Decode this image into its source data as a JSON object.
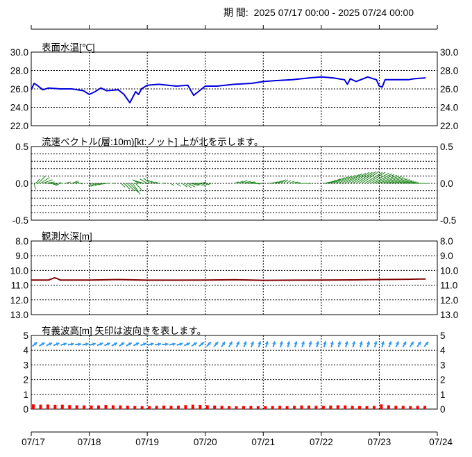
{
  "header": {
    "period_label": "期 間:",
    "period_range": "2025 07/17 00:00 - 2025 07/24 00:00"
  },
  "colors": {
    "temperature": "#0000dd",
    "current": "#108010",
    "depth": "#800000",
    "wave_height": "#ff0000",
    "wave_direction": "#3399ee",
    "grid": "#000000"
  },
  "chart_data": [
    {
      "type": "line",
      "panel": "temperature",
      "title": "表面水温[℃]",
      "ylim": [
        22.0,
        30.0
      ],
      "yticks": [
        "30.0",
        "28.0",
        "26.0",
        "24.0",
        "22.0"
      ],
      "ytick_values": [
        30,
        28,
        26,
        24,
        22
      ],
      "grid": true,
      "series": [
        {
          "x": [
            0,
            0.05,
            0.1,
            0.2,
            0.3,
            0.5,
            0.7,
            0.9,
            1.0,
            1.1,
            1.2,
            1.3,
            1.5,
            1.6,
            1.7,
            1.8,
            1.85,
            1.9,
            2.0,
            2.2,
            2.5,
            2.7,
            2.8,
            2.9,
            3.0,
            3.2,
            3.5,
            3.8,
            4.0,
            4.2,
            4.5,
            4.8,
            5.0,
            5.2,
            5.4,
            5.45,
            5.5,
            5.6,
            5.8,
            5.95,
            6.0,
            6.05,
            6.1,
            6.3,
            6.5,
            6.6,
            6.8
          ],
          "y": [
            25.9,
            26.6,
            26.4,
            25.9,
            26.1,
            26.0,
            26.0,
            25.8,
            25.4,
            25.7,
            26.1,
            25.8,
            25.9,
            25.4,
            24.5,
            25.7,
            25.4,
            26.0,
            26.4,
            26.5,
            26.3,
            26.4,
            25.3,
            25.8,
            26.3,
            26.3,
            26.5,
            26.6,
            26.8,
            26.9,
            27.0,
            27.2,
            27.3,
            27.2,
            27.0,
            26.5,
            27.1,
            26.8,
            27.3,
            27.0,
            26.3,
            26.2,
            27.0,
            27.0,
            27.0,
            27.1,
            27.2
          ]
        }
      ]
    },
    {
      "type": "line",
      "panel": "current",
      "title": "流速ベクトル(層:10m)[kt:ノット] 上が北を示します。",
      "ylim": [
        -0.5,
        0.5
      ],
      "yticks": [
        "0.5",
        "0.0",
        "-0.5"
      ],
      "ytick_values": [
        0.5,
        0.0,
        -0.5
      ],
      "grid": true,
      "vectors": {
        "t": [
          0.05,
          0.08,
          0.12,
          0.16,
          0.2,
          0.25,
          0.3,
          0.35,
          0.4,
          0.45,
          0.5,
          0.6,
          0.7,
          0.75,
          0.8,
          0.85,
          1.05,
          1.1,
          1.15,
          1.2,
          1.25,
          1.3,
          1.35,
          1.45,
          1.55,
          1.6,
          1.65,
          1.7,
          1.75,
          1.8,
          1.85,
          1.9,
          1.95,
          2.0,
          2.05,
          2.1,
          2.15,
          2.2,
          2.3,
          2.4,
          2.5,
          2.6,
          2.65,
          2.7,
          2.75,
          2.8,
          2.85,
          2.9,
          2.95,
          3.0,
          3.05,
          3.1,
          3.5,
          3.55,
          3.6,
          3.65,
          3.7,
          3.75,
          3.8,
          3.85,
          3.9,
          4.1,
          4.15,
          4.2,
          4.25,
          4.3,
          4.35,
          4.4,
          4.45,
          4.5,
          4.55,
          4.6,
          4.65,
          4.7,
          4.75,
          4.8,
          5.05,
          5.1,
          5.15,
          5.2,
          5.25,
          5.3,
          5.35,
          5.4,
          5.45,
          5.5,
          5.55,
          5.6,
          5.65,
          5.7,
          5.75,
          5.8,
          5.85,
          5.9,
          5.95,
          6.0,
          6.05,
          6.1,
          6.15,
          6.2,
          6.25,
          6.3,
          6.35,
          6.4,
          6.45,
          6.5,
          6.55,
          6.6,
          6.65,
          6.7,
          6.75,
          6.8
        ],
        "u": [
          0.02,
          0.05,
          0.1,
          0.12,
          0.13,
          0.12,
          0.1,
          0.08,
          0.06,
          0.05,
          0.04,
          0.06,
          0.08,
          0.06,
          0.05,
          0.03,
          -0.05,
          -0.07,
          -0.09,
          -0.08,
          -0.07,
          -0.06,
          -0.05,
          -0.04,
          0.05,
          0.08,
          0.1,
          0.11,
          0.1,
          0.09,
          -0.08,
          -0.1,
          -0.12,
          -0.1,
          -0.09,
          -0.08,
          -0.07,
          -0.05,
          -0.04,
          0.05,
          0.06,
          0.07,
          0.09,
          0.1,
          0.11,
          0.09,
          0.08,
          0.07,
          0.05,
          -0.05,
          -0.06,
          -0.05,
          0.06,
          0.08,
          0.1,
          0.11,
          0.12,
          0.1,
          0.09,
          0.08,
          0.06,
          0.07,
          0.08,
          0.09,
          0.08,
          0.07,
          0.06,
          0.06,
          0.07,
          0.08,
          0.07,
          0.06,
          0.05,
          0.04,
          0.03,
          0.02,
          0.1,
          0.12,
          0.14,
          0.16,
          0.17,
          0.18,
          0.19,
          0.2,
          0.2,
          0.21,
          0.22,
          0.22,
          0.23,
          0.23,
          0.24,
          0.24,
          0.25,
          0.25,
          0.24,
          0.24,
          0.23,
          0.22,
          0.21,
          0.2,
          0.19,
          0.18,
          0.17,
          0.16,
          0.15,
          0.14,
          0.12,
          0.11,
          0.1,
          0.08,
          0.06,
          0.05
        ],
        "v": [
          -0.08,
          0.06,
          0.1,
          0.08,
          0.05,
          0.02,
          -0.01,
          -0.03,
          -0.02,
          0.01,
          0.0,
          0.02,
          0.03,
          0.02,
          0.0,
          -0.01,
          -0.03,
          -0.04,
          -0.04,
          -0.03,
          -0.02,
          -0.01,
          0.0,
          0.0,
          -0.05,
          -0.08,
          -0.1,
          -0.12,
          -0.15,
          -0.1,
          0.05,
          0.04,
          0.03,
          0.06,
          0.07,
          0.05,
          0.03,
          0.02,
          0.0,
          -0.03,
          -0.04,
          -0.05,
          -0.06,
          -0.05,
          -0.03,
          -0.02,
          -0.01,
          0.01,
          0.02,
          -0.03,
          -0.04,
          -0.02,
          0.02,
          0.03,
          0.04,
          0.03,
          0.02,
          0.01,
          0.0,
          -0.01,
          0.0,
          0.01,
          0.02,
          0.03,
          0.04,
          0.05,
          0.05,
          0.04,
          0.03,
          0.02,
          0.01,
          0.0,
          0.0,
          0.0,
          0.0,
          0.0,
          0.02,
          0.04,
          0.06,
          0.08,
          0.09,
          0.1,
          0.11,
          0.12,
          0.13,
          0.14,
          0.15,
          0.15,
          0.16,
          0.16,
          0.15,
          0.15,
          0.14,
          0.13,
          0.12,
          0.11,
          0.1,
          0.09,
          0.08,
          0.07,
          0.06,
          0.05,
          0.04,
          0.03,
          0.02,
          0.01,
          0.0,
          0.0,
          0.0,
          0.0,
          0.0,
          0.0
        ]
      }
    },
    {
      "type": "line",
      "panel": "depth",
      "title": "観測水深[m]",
      "ylim": [
        8.0,
        13.0
      ],
      "inverted": true,
      "yticks": [
        "8.0",
        "9.0",
        "10.0",
        "11.0",
        "12.0",
        "13.0"
      ],
      "ytick_values": [
        8,
        9,
        10,
        11,
        12,
        13
      ],
      "grid": true,
      "series": [
        {
          "x": [
            0,
            0.3,
            0.4,
            0.45,
            0.5,
            1.0,
            1.5,
            2.0,
            2.5,
            3.0,
            3.5,
            4.0,
            4.5,
            5.0,
            5.5,
            6.0,
            6.5,
            6.7,
            6.8
          ],
          "y": [
            10.65,
            10.65,
            10.5,
            10.55,
            10.65,
            10.65,
            10.62,
            10.66,
            10.66,
            10.65,
            10.63,
            10.67,
            10.66,
            10.65,
            10.64,
            10.62,
            10.6,
            10.58,
            10.58
          ]
        }
      ]
    },
    {
      "type": "bar",
      "panel": "wave",
      "title": "有義波高[m] 矢印は波向きを表します。",
      "ylim": [
        0,
        5
      ],
      "yticks": [
        "5",
        "4",
        "3",
        "2",
        "1",
        "0"
      ],
      "ytick_values": [
        5,
        4,
        3,
        2,
        1,
        0
      ],
      "grid": true,
      "bars": {
        "t": [
          0.0,
          0.125,
          0.25,
          0.375,
          0.5,
          0.625,
          0.75,
          0.875,
          1.0,
          1.125,
          1.25,
          1.375,
          1.5,
          1.625,
          1.75,
          1.875,
          2.0,
          2.125,
          2.25,
          2.375,
          2.5,
          2.625,
          2.75,
          2.875,
          3.0,
          3.125,
          3.25,
          3.375,
          3.5,
          3.625,
          3.75,
          3.875,
          4.0,
          4.125,
          4.25,
          4.375,
          4.5,
          4.625,
          4.75,
          4.875,
          5.0,
          5.125,
          5.25,
          5.375,
          5.5,
          5.625,
          5.75,
          5.875,
          6.0,
          6.125,
          6.25,
          6.375,
          6.5,
          6.625,
          6.75
        ],
        "height": [
          0.32,
          0.3,
          0.31,
          0.29,
          0.3,
          0.27,
          0.26,
          0.25,
          0.24,
          0.25,
          0.28,
          0.26,
          0.25,
          0.23,
          0.21,
          0.2,
          0.2,
          0.22,
          0.24,
          0.22,
          0.23,
          0.27,
          0.3,
          0.28,
          0.26,
          0.24,
          0.22,
          0.2,
          0.19,
          0.2,
          0.21,
          0.2,
          0.2,
          0.21,
          0.22,
          0.2,
          0.22,
          0.25,
          0.24,
          0.22,
          0.22,
          0.24,
          0.26,
          0.25,
          0.22,
          0.21,
          0.2,
          0.22,
          0.32,
          0.26,
          0.22,
          0.22,
          0.2,
          0.22,
          0.22
        ]
      },
      "direction_deg": [
        50,
        60,
        65,
        70,
        75,
        80,
        85,
        80,
        75,
        70,
        65,
        60,
        55,
        60,
        65,
        70,
        75,
        80,
        85,
        80,
        75,
        65,
        55,
        50,
        45,
        40,
        35,
        30,
        25,
        20,
        20,
        15,
        15,
        15,
        15,
        15,
        15,
        15,
        15,
        15,
        15,
        15,
        15,
        15,
        15,
        15,
        15,
        15,
        15,
        20,
        25,
        30,
        35,
        35,
        40
      ]
    }
  ],
  "x_axis": {
    "tick_labels": [
      "07/17",
      "07/18",
      "07/19",
      "07/20",
      "07/21",
      "07/22",
      "07/23",
      "07/24"
    ],
    "tick_values": [
      0,
      1,
      2,
      3,
      4,
      5,
      6,
      7
    ]
  }
}
